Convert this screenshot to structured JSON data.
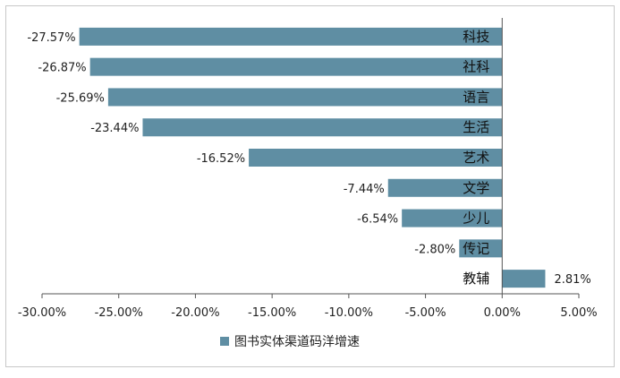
{
  "chart_data": {
    "type": "bar",
    "orientation": "horizontal",
    "categories": [
      "科技",
      "社科",
      "语言",
      "生活",
      "艺术",
      "文学",
      "少儿",
      "传记",
      "教辅"
    ],
    "series": [
      {
        "name": "图书实体渠道码洋增速",
        "values": [
          -27.57,
          -26.87,
          -25.69,
          -23.44,
          -16.52,
          -7.44,
          -6.54,
          -2.8,
          2.81
        ],
        "labels": [
          "-27.57%",
          "-26.87%",
          "-25.69%",
          "-23.44%",
          "-16.52%",
          "-7.44%",
          "-6.54%",
          "-2.80%",
          "2.81%"
        ]
      }
    ],
    "xlim": [
      -30,
      5
    ],
    "xticks": [
      -30,
      -25,
      -20,
      -15,
      -10,
      -5,
      0,
      5
    ],
    "xtick_labels": [
      "-30.00%",
      "-25.00%",
      "-20.00%",
      "-15.00%",
      "-10.00%",
      "-5.00%",
      "0.00%",
      "5.00%"
    ],
    "grid": false,
    "legend_position": "bottom",
    "colors": {
      "bar": "#5f8ea3",
      "axis": "#555555",
      "text": "#222222"
    }
  }
}
